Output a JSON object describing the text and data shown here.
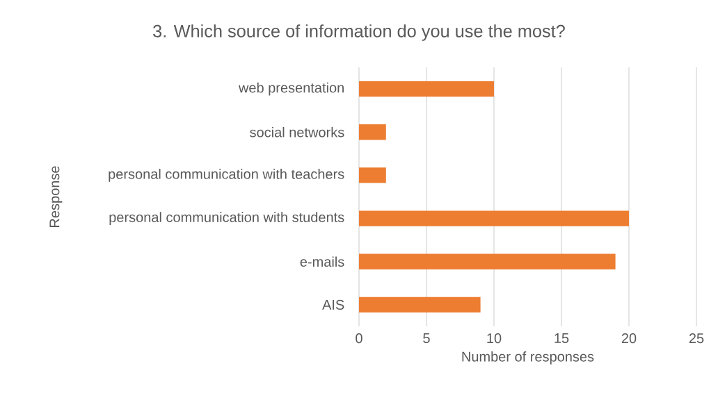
{
  "chart_data": {
    "type": "bar",
    "orientation": "horizontal",
    "title": "3. Which source of information do you use the most?",
    "xlabel": "Number of responses",
    "ylabel": "Response",
    "categories": [
      "web presentation",
      "social networks",
      "personal communication with teachers",
      "personal communication with students",
      "e-mails",
      "AIS"
    ],
    "values": [
      10,
      2,
      2,
      20,
      19,
      9
    ],
    "color": "#ed7d31",
    "xlim": [
      0,
      25
    ],
    "xticks": [
      0,
      5,
      10,
      15,
      20,
      25
    ],
    "grid": "x"
  }
}
